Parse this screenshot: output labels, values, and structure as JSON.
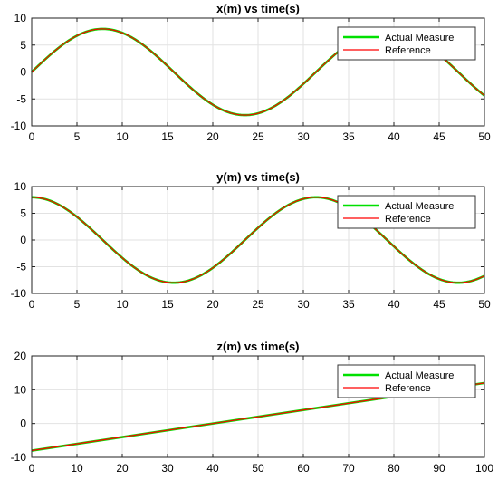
{
  "chart_data": [
    {
      "type": "line",
      "title": "x(m) vs time(s)",
      "xlim": [
        0,
        50
      ],
      "ylim": [
        -10,
        10
      ],
      "xticks": [
        0,
        5,
        10,
        15,
        20,
        25,
        30,
        35,
        40,
        45,
        50
      ],
      "xtick_labels": [
        "0",
        "5",
        "10",
        "15",
        "20",
        "25",
        "30",
        "35",
        "40",
        "45",
        "50"
      ],
      "yticks": [
        -10,
        -5,
        0,
        5,
        10
      ],
      "ytick_labels": [
        "-10",
        "-5",
        "0",
        "5",
        "10"
      ],
      "grid": true,
      "legend": "top-right",
      "series": [
        {
          "name": "Actual Measure",
          "color": "#00e000",
          "formula": "8*sin(2*pi*t/31.4)",
          "x": [
            0,
            4,
            7.85,
            12,
            15.7,
            20,
            23.55,
            28,
            31.4,
            35,
            39.25,
            43,
            47.1,
            50
          ],
          "y": [
            0,
            5.76,
            8,
            5.9,
            0,
            -5.8,
            -8,
            -5.2,
            0,
            5.7,
            8,
            5.1,
            0,
            -4.8
          ]
        },
        {
          "name": "Reference",
          "color": "#ff0000",
          "formula": "8*sin(2*pi*t/31.4)",
          "x": [
            0,
            4,
            7.85,
            12,
            15.7,
            20,
            23.55,
            28,
            31.4,
            35,
            39.25,
            43,
            47.1,
            50
          ],
          "y": [
            0,
            5.76,
            8,
            5.9,
            0,
            -5.8,
            -8,
            -5.2,
            0,
            5.7,
            8,
            5.1,
            0,
            -4.8
          ]
        }
      ]
    },
    {
      "type": "line",
      "title": "y(m) vs time(s)",
      "xlim": [
        0,
        50
      ],
      "ylim": [
        -10,
        10
      ],
      "xticks": [
        0,
        5,
        10,
        15,
        20,
        25,
        30,
        35,
        40,
        45,
        50
      ],
      "xtick_labels": [
        "0",
        "5",
        "10",
        "15",
        "20",
        "25",
        "30",
        "35",
        "40",
        "45",
        "50"
      ],
      "yticks": [
        -10,
        -5,
        0,
        5,
        10
      ],
      "ytick_labels": [
        "-10",
        "-5",
        "0",
        "5",
        "10"
      ],
      "grid": true,
      "legend": "top-right",
      "series": [
        {
          "name": "Actual Measure",
          "color": "#00e000",
          "formula": "8*cos(2*pi*t/31.4)",
          "x": [
            0,
            4,
            7.85,
            12,
            15.7,
            20,
            23.55,
            28,
            31.4,
            35,
            39.25,
            43,
            47.1,
            50
          ],
          "y": [
            8,
            6.2,
            0,
            -5.4,
            -8,
            -5.9,
            0,
            4.2,
            8,
            6.3,
            0,
            -5.5,
            -8,
            -6.8
          ]
        },
        {
          "name": "Reference",
          "color": "#ff0000",
          "formula": "8*cos(2*pi*t/31.4)",
          "x": [
            0,
            4,
            7.85,
            12,
            15.7,
            20,
            23.55,
            28,
            31.4,
            35,
            39.25,
            43,
            47.1,
            50
          ],
          "y": [
            8,
            6.2,
            0,
            -5.4,
            -8,
            -5.9,
            0,
            4.2,
            8,
            6.3,
            0,
            -5.5,
            -8,
            -6.8
          ]
        }
      ]
    },
    {
      "type": "line",
      "title": "z(m) vs time(s)",
      "xlim": [
        0,
        100
      ],
      "ylim": [
        -10,
        20
      ],
      "xticks": [
        0,
        10,
        20,
        30,
        40,
        50,
        60,
        70,
        80,
        90,
        100
      ],
      "xtick_labels": [
        "0",
        "10",
        "20",
        "30",
        "40",
        "50",
        "60",
        "70",
        "80",
        "90",
        "100"
      ],
      "yticks": [
        -10,
        0,
        10,
        20
      ],
      "ytick_labels": [
        "-10",
        "0",
        "10",
        "20"
      ],
      "grid": true,
      "legend": "top-right",
      "series": [
        {
          "name": "Actual Measure",
          "color": "#00e000",
          "x": [
            0,
            100
          ],
          "y": [
            -8,
            12
          ]
        },
        {
          "name": "Reference",
          "color": "#ff0000",
          "x": [
            0,
            100
          ],
          "y": [
            -8,
            12
          ]
        }
      ]
    }
  ]
}
